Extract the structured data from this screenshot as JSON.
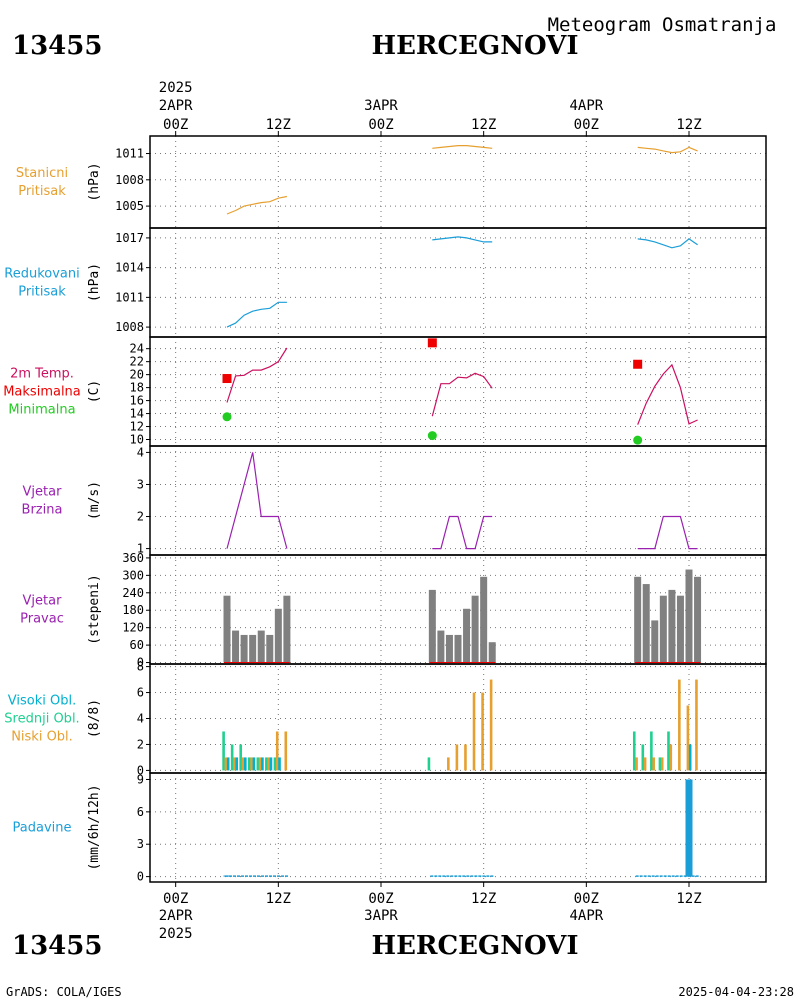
{
  "header": {
    "station_id": "13455",
    "station_name": "HERCEGNOVI",
    "product": "Meteogram Osmatranja",
    "footer_left": "GrADS: COLA/IGES",
    "footer_right": "2025-04-04-23:28"
  },
  "time_axis": {
    "year": "2025",
    "days": [
      "2APR",
      "3APR",
      "4APR"
    ],
    "tick_labels": [
      "00Z",
      "12Z",
      "00Z",
      "12Z",
      "00Z",
      "12Z"
    ],
    "tick_hours": [
      0,
      12,
      24,
      36,
      48,
      60
    ],
    "range_hours": [
      -3,
      69
    ]
  },
  "colors": {
    "pressure": "#e6a030",
    "reduced": "#1a9ed8",
    "temp": "#cc1060",
    "tmax": "#ee0000",
    "tmin": "#22cc22",
    "wind": "#9a20b0",
    "bars_grey": "#808080",
    "high_cloud": "#00b0d0",
    "mid_cloud": "#20d090",
    "low_cloud": "#e6a030",
    "precip": "#1a9ed8"
  },
  "chart_data": [
    {
      "type": "line",
      "id": "p1",
      "labels": [
        "Stanicni",
        "Pritisak"
      ],
      "unit": "(hPa)",
      "ylim": [
        1002.5,
        1013
      ],
      "yticks": [
        1005,
        1008,
        1011
      ],
      "series": [
        {
          "color_key": "pressure",
          "segments": [
            [
              [
                6,
                1004.1
              ],
              [
                7,
                1004.5
              ],
              [
                8,
                1005.0
              ],
              [
                9,
                1005.2
              ],
              [
                10,
                1005.4
              ],
              [
                11,
                1005.5
              ],
              [
                12,
                1005.9
              ],
              [
                13,
                1006.1
              ]
            ],
            [
              [
                30,
                1011.6
              ],
              [
                31,
                1011.7
              ],
              [
                32,
                1011.8
              ],
              [
                33,
                1011.9
              ],
              [
                34,
                1011.9
              ],
              [
                35,
                1011.8
              ],
              [
                36,
                1011.7
              ],
              [
                37,
                1011.6
              ]
            ],
            [
              [
                54,
                1011.7
              ],
              [
                55,
                1011.6
              ],
              [
                56,
                1011.5
              ],
              [
                57,
                1011.3
              ],
              [
                58,
                1011.1
              ],
              [
                59,
                1011.2
              ],
              [
                60,
                1011.7
              ],
              [
                61,
                1011.3
              ]
            ]
          ]
        }
      ]
    },
    {
      "type": "line",
      "id": "p2",
      "labels": [
        "Redukovani",
        "Pritisak"
      ],
      "unit": "(hPa)",
      "ylim": [
        1007,
        1018
      ],
      "yticks": [
        1008,
        1011,
        1014,
        1017
      ],
      "series": [
        {
          "color_key": "reduced",
          "segments": [
            [
              [
                6,
                1008.0
              ],
              [
                7,
                1008.4
              ],
              [
                8,
                1009.2
              ],
              [
                9,
                1009.6
              ],
              [
                10,
                1009.8
              ],
              [
                11,
                1009.9
              ],
              [
                12,
                1010.5
              ],
              [
                13,
                1010.5
              ]
            ],
            [
              [
                30,
                1016.8
              ],
              [
                31,
                1016.9
              ],
              [
                32,
                1017.0
              ],
              [
                33,
                1017.1
              ],
              [
                34,
                1017.0
              ],
              [
                35,
                1016.8
              ],
              [
                36,
                1016.6
              ],
              [
                37,
                1016.6
              ]
            ],
            [
              [
                54,
                1016.9
              ],
              [
                55,
                1016.8
              ],
              [
                56,
                1016.6
              ],
              [
                57,
                1016.3
              ],
              [
                58,
                1016.0
              ],
              [
                59,
                1016.2
              ],
              [
                60,
                1016.9
              ],
              [
                61,
                1016.3
              ]
            ]
          ]
        }
      ]
    },
    {
      "type": "line",
      "id": "p3",
      "labels": [
        "2m Temp.",
        "Maksimalna",
        "Minimalna"
      ],
      "label_color_keys": [
        "temp",
        "tmax",
        "tmin"
      ],
      "unit": "(C)",
      "ylim": [
        9,
        25.8
      ],
      "yticks": [
        10,
        12,
        14,
        16,
        18,
        20,
        22,
        24
      ],
      "series": [
        {
          "color_key": "temp",
          "segments": [
            [
              [
                6,
                15.7
              ],
              [
                7,
                19.8
              ],
              [
                8,
                19.9
              ],
              [
                9,
                20.7
              ],
              [
                10,
                20.7
              ],
              [
                11,
                21.2
              ],
              [
                12,
                22.0
              ],
              [
                13,
                24.1
              ]
            ],
            [
              [
                30,
                13.6
              ],
              [
                31,
                18.6
              ],
              [
                32,
                18.6
              ],
              [
                33,
                19.6
              ],
              [
                34,
                19.5
              ],
              [
                35,
                20.2
              ],
              [
                36,
                19.7
              ],
              [
                37,
                17.9
              ]
            ],
            [
              [
                54,
                12.3
              ],
              [
                55,
                15.6
              ],
              [
                56,
                18.2
              ],
              [
                57,
                20.1
              ],
              [
                58,
                21.5
              ],
              [
                59,
                18.0
              ],
              [
                60,
                12.4
              ],
              [
                61,
                13.0
              ]
            ]
          ]
        }
      ],
      "tmax_points": [
        [
          6,
          19.4
        ],
        [
          30,
          24.9
        ],
        [
          54,
          21.6
        ]
      ],
      "tmin_points": [
        [
          6,
          13.5
        ],
        [
          30,
          10.6
        ],
        [
          54,
          9.9
        ]
      ]
    },
    {
      "type": "line",
      "id": "p4",
      "labels": [
        "Vjetar",
        "Brzina"
      ],
      "unit": "(m/s)",
      "ylim": [
        0.8,
        4.2
      ],
      "yticks": [
        1,
        2,
        3,
        4
      ],
      "series": [
        {
          "color_key": "wind",
          "segments": [
            [
              [
                6,
                1
              ],
              [
                9,
                4
              ],
              [
                10,
                2
              ],
              [
                11,
                2
              ],
              [
                12,
                2
              ],
              [
                13,
                1
              ]
            ],
            [
              [
                30,
                1
              ],
              [
                31,
                1
              ],
              [
                32,
                2
              ],
              [
                33,
                2
              ],
              [
                34,
                1
              ],
              [
                35,
                1
              ],
              [
                36,
                2
              ],
              [
                37,
                2
              ]
            ],
            [
              [
                54,
                1
              ],
              [
                55,
                1
              ],
              [
                56,
                1
              ],
              [
                57,
                2
              ],
              [
                58,
                2
              ],
              [
                59,
                2
              ],
              [
                60,
                1
              ],
              [
                61,
                1
              ]
            ]
          ]
        }
      ]
    },
    {
      "type": "bar",
      "id": "p5",
      "labels": [
        "Vjetar",
        "Pravac"
      ],
      "unit": "(stepeni)",
      "ylim": [
        -5,
        370
      ],
      "yticks": [
        0,
        60,
        120,
        180,
        240,
        300,
        360
      ],
      "ytick_labels": [
        "0",
        "60",
        "120",
        "180",
        "240",
        "300",
        "360"
      ],
      "x": [
        6,
        7,
        8,
        9,
        10,
        11,
        12,
        13,
        30,
        31,
        32,
        33,
        34,
        35,
        36,
        37,
        54,
        55,
        56,
        57,
        58,
        59,
        60,
        61
      ],
      "values": [
        230,
        110,
        95,
        95,
        110,
        95,
        185,
        230,
        250,
        110,
        95,
        95,
        185,
        230,
        295,
        70,
        295,
        270,
        145,
        230,
        250,
        230,
        320,
        295
      ]
    },
    {
      "type": "bar",
      "id": "p6",
      "labels": [
        "Visoki Obl.",
        "Srednji Obl.",
        "Niski Obl."
      ],
      "label_color_keys": [
        "high_cloud",
        "mid_cloud",
        "low_cloud"
      ],
      "unit": "(8/8)",
      "ylim": [
        -0.2,
        8.2
      ],
      "yticks": [
        0,
        2,
        4,
        6,
        8
      ],
      "x": [
        6,
        7,
        8,
        9,
        10,
        11,
        12,
        13,
        30,
        31,
        32,
        33,
        34,
        35,
        36,
        37,
        54,
        55,
        56,
        57,
        58,
        59,
        60,
        61
      ],
      "series": [
        {
          "name": "Srednji Obl.",
          "color_key": "mid_cloud",
          "values": [
            3,
            2,
            2,
            1,
            1,
            1,
            1,
            0,
            1,
            0,
            0,
            0,
            0,
            0,
            0,
            0,
            3,
            2,
            3,
            1,
            3,
            0,
            0,
            0
          ]
        },
        {
          "name": "Niski Obl.",
          "color_key": "low_cloud",
          "values": [
            1,
            1,
            1,
            1,
            1,
            1,
            3,
            3,
            0,
            0,
            1,
            2,
            2,
            6,
            6,
            7,
            1,
            1,
            1,
            1,
            2,
            7,
            5,
            7
          ]
        },
        {
          "name": "Visoki Obl.",
          "color_key": "high_cloud",
          "values": [
            1,
            1,
            1,
            1,
            1,
            1,
            1,
            0,
            0,
            0,
            0,
            0,
            0,
            0,
            0,
            0,
            0,
            0,
            0,
            0,
            0,
            0,
            2,
            0
          ]
        }
      ]
    },
    {
      "type": "bar",
      "id": "p7",
      "labels": [
        "Padavine"
      ],
      "unit": "(mm/6h/12h)",
      "ylim": [
        -0.5,
        9.6
      ],
      "yticks": [
        0,
        3,
        6,
        9
      ],
      "x": [
        6,
        7,
        8,
        9,
        10,
        11,
        12,
        13,
        30,
        31,
        32,
        33,
        34,
        35,
        36,
        37,
        54,
        55,
        56,
        57,
        58,
        59,
        60,
        61
      ],
      "values": [
        0.1,
        0,
        0,
        0,
        0,
        0,
        0,
        0,
        0,
        0,
        0,
        0,
        0,
        0,
        0,
        0,
        0,
        0,
        0,
        0,
        0,
        0,
        9,
        0
      ]
    }
  ]
}
